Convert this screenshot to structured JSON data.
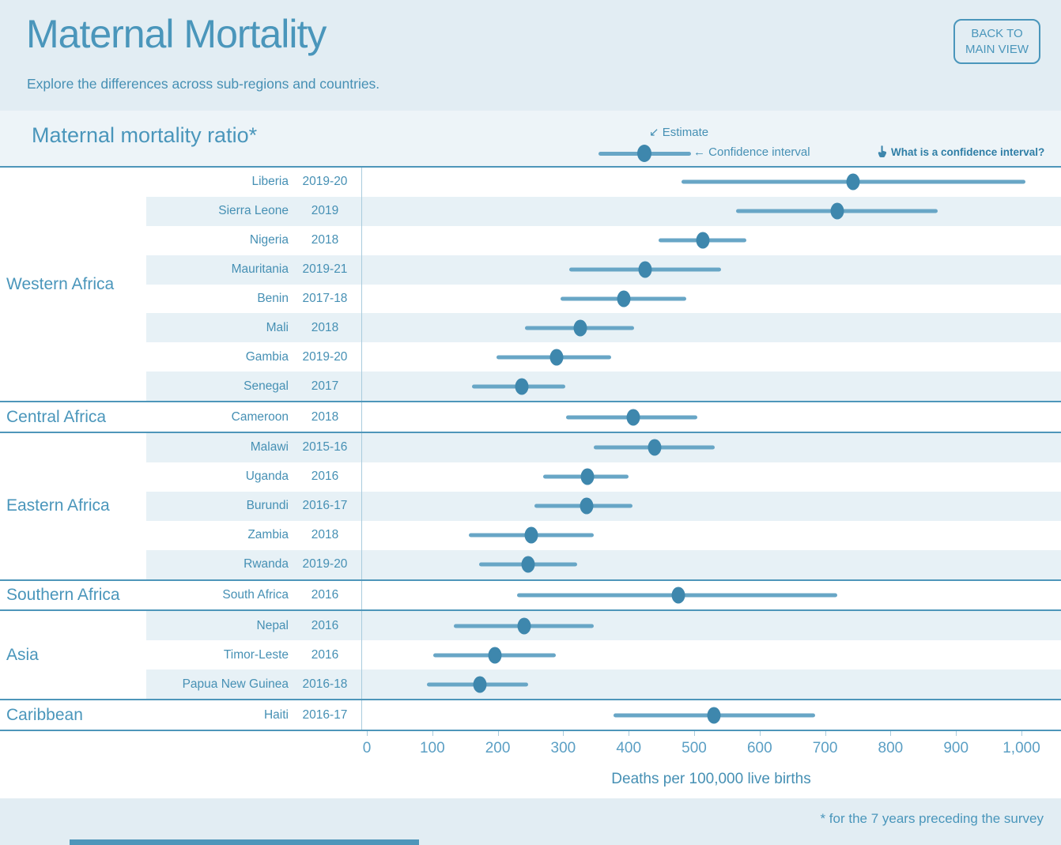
{
  "header": {
    "title": "Maternal Mortality",
    "subtitle": "Explore the differences across sub-regions and countries.",
    "back_button": "BACK TO\nMAIN VIEW"
  },
  "section": {
    "title": "Maternal mortality ratio*",
    "legend": {
      "estimate_label": "↙ Estimate",
      "ci_label": "← Confidence interval",
      "help_label": "What is a confidence interval?"
    }
  },
  "axis": {
    "min": 0,
    "max": 1000,
    "tick_step": 100,
    "tick_labels": [
      "0",
      "100",
      "200",
      "300",
      "400",
      "500",
      "600",
      "700",
      "800",
      "900",
      "1,000"
    ],
    "xlabel": "Deaths per 100,000 live births"
  },
  "footer": {
    "note": "* for the 7 years preceding the survey"
  },
  "colors": {
    "band": "#e2edf3",
    "band2": "#edf4f8",
    "accent": "#4a96bb",
    "text_blue": "#4690b4",
    "dot": "#3e87ad",
    "ci": "#68a6c6",
    "stripe": "#e7f1f6",
    "line": "#4e96ba",
    "tick": "#a9cbdd",
    "help": "#2f7ea6"
  },
  "chart_data": {
    "type": "scatter",
    "subtype": "horizontal dot plot with confidence-interval error bars",
    "title": "Maternal mortality ratio*",
    "xlabel": "Deaths per 100,000 live births",
    "xlim": [
      0,
      1000
    ],
    "grid": false,
    "legend_position": "top",
    "regions": [
      {
        "name": "Western Africa",
        "countries": [
          {
            "country": "Liberia",
            "year": "2019-20",
            "estimate": 742,
            "ci_low": 479,
            "ci_high": 1005
          },
          {
            "country": "Sierra Leone",
            "year": "2019",
            "estimate": 717,
            "ci_low": 563,
            "ci_high": 871
          },
          {
            "country": "Nigeria",
            "year": "2018",
            "estimate": 512,
            "ci_low": 445,
            "ci_high": 578
          },
          {
            "country": "Mauritania",
            "year": "2019-21",
            "estimate": 424,
            "ci_low": 308,
            "ci_high": 540
          },
          {
            "country": "Benin",
            "year": "2017-18",
            "estimate": 391,
            "ci_low": 295,
            "ci_high": 487
          },
          {
            "country": "Mali",
            "year": "2018",
            "estimate": 325,
            "ci_low": 240,
            "ci_high": 407
          },
          {
            "country": "Gambia",
            "year": "2019-20",
            "estimate": 289,
            "ci_low": 197,
            "ci_high": 372
          },
          {
            "country": "Senegal",
            "year": "2017",
            "estimate": 236,
            "ci_low": 160,
            "ci_high": 302
          }
        ]
      },
      {
        "name": "Central Africa",
        "countries": [
          {
            "country": "Cameroon",
            "year": "2018",
            "estimate": 406,
            "ci_low": 303,
            "ci_high": 504
          }
        ]
      },
      {
        "name": "Eastern Africa",
        "countries": [
          {
            "country": "Malawi",
            "year": "2015-16",
            "estimate": 439,
            "ci_low": 345,
            "ci_high": 530
          },
          {
            "country": "Uganda",
            "year": "2016",
            "estimate": 336,
            "ci_low": 268,
            "ci_high": 399
          },
          {
            "country": "Burundi",
            "year": "2016-17",
            "estimate": 334,
            "ci_low": 255,
            "ci_high": 405
          },
          {
            "country": "Zambia",
            "year": "2018",
            "estimate": 250,
            "ci_low": 155,
            "ci_high": 345
          },
          {
            "country": "Rwanda",
            "year": "2019-20",
            "estimate": 245,
            "ci_low": 170,
            "ci_high": 320
          }
        ]
      },
      {
        "name": "Southern Africa",
        "countries": [
          {
            "country": "South Africa",
            "year": "2016",
            "estimate": 475,
            "ci_low": 228,
            "ci_high": 717
          }
        ]
      },
      {
        "name": "Asia",
        "countries": [
          {
            "country": "Nepal",
            "year": "2016",
            "estimate": 239,
            "ci_low": 132,
            "ci_high": 345
          },
          {
            "country": "Timor-Leste",
            "year": "2016",
            "estimate": 195,
            "ci_low": 100,
            "ci_high": 288
          },
          {
            "country": "Papua New Guinea",
            "year": "2016-18",
            "estimate": 171,
            "ci_low": 90,
            "ci_high": 245
          }
        ]
      },
      {
        "name": "Caribbean",
        "countries": [
          {
            "country": "Haiti",
            "year": "2016-17",
            "estimate": 529,
            "ci_low": 375,
            "ci_high": 683
          }
        ]
      }
    ]
  }
}
